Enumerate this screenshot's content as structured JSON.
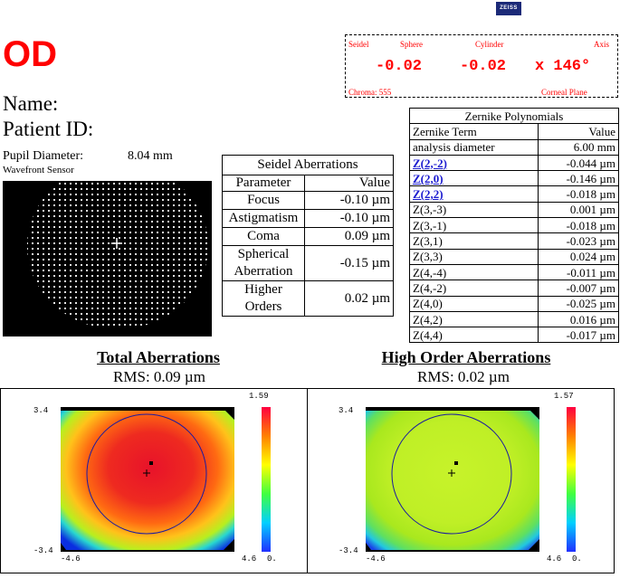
{
  "logo": "ZEISS",
  "eye": "OD",
  "patient": {
    "name_label": "Name:",
    "id_label": "Patient ID:"
  },
  "pupil": {
    "label": "Pupil Diameter:",
    "value": "8.04 mm"
  },
  "sensor_label": "Wavefront Sensor",
  "refraction": {
    "headers": {
      "seidel": "Seidel",
      "sphere": "Sphere",
      "cylinder": "Cylinder",
      "axis": "Axis"
    },
    "sphere": "-0.02",
    "cylinder": "-0.02",
    "axis": "x 146°",
    "chroma": "Chroma: 555",
    "plane": "Corneal Plane"
  },
  "seidel_table": {
    "title": "Seidel Aberrations",
    "col_param": "Parameter",
    "col_value": "Value",
    "rows": [
      {
        "param": "Focus",
        "value": "-0.10 µm"
      },
      {
        "param": "Astigmatism",
        "value": "-0.10 µm"
      },
      {
        "param": "Coma",
        "value": "0.09 µm"
      },
      {
        "param": "Spherical Aberration",
        "value": "-0.15 µm"
      },
      {
        "param": "Higher Orders",
        "value": "0.02 µm"
      }
    ]
  },
  "zernike_table": {
    "title": "Zernike Polynomials",
    "col_term": "Zernike Term",
    "col_value": "Value",
    "rows": [
      {
        "term": "analysis diameter",
        "value": "6.00 mm"
      },
      {
        "term": "Z(2,-2)",
        "value": "-0.044 µm"
      },
      {
        "term": "Z(2,0)",
        "value": "-0.146 µm"
      },
      {
        "term": "Z(2,2)",
        "value": "-0.018 µm"
      },
      {
        "term": "Z(3,-3)",
        "value": "0.001 µm"
      },
      {
        "term": "Z(3,-1)",
        "value": "-0.018 µm"
      },
      {
        "term": "Z(3,1)",
        "value": "-0.023 µm"
      },
      {
        "term": "Z(3,3)",
        "value": "0.024 µm"
      },
      {
        "term": "Z(4,-4)",
        "value": "-0.011 µm"
      },
      {
        "term": "Z(4,-2)",
        "value": "-0.007 µm"
      },
      {
        "term": "Z(4,0)",
        "value": "-0.025 µm"
      },
      {
        "term": "Z(4,2)",
        "value": "0.016 µm"
      },
      {
        "term": "Z(4,4)",
        "value": "-0.017 µm"
      }
    ]
  },
  "maps": {
    "total": {
      "title": "Total Aberrations",
      "rms": "RMS: 0.09 µm",
      "scale_max": "1.59",
      "scale_min": "0.",
      "y_top": "3.4",
      "y_bottom": "-3.4",
      "x_left": "-4.6",
      "x_right": "4.6"
    },
    "high": {
      "title": "High Order Aberrations",
      "rms": "RMS: 0.02 µm",
      "scale_max": "1.57",
      "scale_min": "0.",
      "y_top": "3.4",
      "y_bottom": "-3.4",
      "x_left": "-4.6",
      "x_right": "4.6"
    }
  },
  "colors": {
    "accent_red": "#ff0000",
    "link_blue": "#1b1bd0",
    "logo_blue": "#1c2a78"
  }
}
